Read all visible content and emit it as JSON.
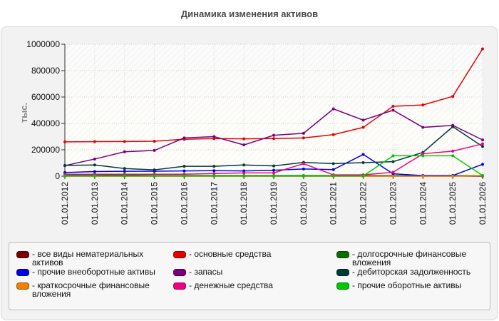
{
  "chart_data": {
    "type": "line",
    "title": "Динамика изменения активов",
    "ylabel": "тыс.",
    "xlabel": "",
    "ylim": [
      0,
      1000000
    ],
    "yticks": [
      0,
      200000,
      400000,
      600000,
      800000,
      1000000
    ],
    "ytick_labels": [
      "0",
      "200000",
      "400000",
      "600000",
      "800000",
      "1000000"
    ],
    "x": [
      "01.01.2012",
      "01.01.2013",
      "01.01.2014",
      "01.01.2015",
      "01.01.2016",
      "01.01.2017",
      "01.01.2018",
      "01.01.2019",
      "01.01.2020",
      "01.01.2021",
      "01.01.2022",
      "01.01.2023",
      "01.01.2024",
      "01.01.2025",
      "01.01.2026"
    ],
    "grid": true,
    "legend_position": "bottom",
    "series": [
      {
        "name": "все виды нематериальных активов",
        "color": "#7a0000",
        "values": [
          1000,
          1000,
          1000,
          1000,
          1000,
          1000,
          1000,
          1000,
          1000,
          1000,
          1000,
          1000,
          1000,
          1000,
          1000
        ]
      },
      {
        "name": "основные средства",
        "color": "#e80000",
        "values": [
          260000,
          262000,
          263000,
          265000,
          280000,
          285000,
          283000,
          285000,
          290000,
          315000,
          370000,
          530000,
          540000,
          605000,
          965000
        ]
      },
      {
        "name": "долгосрочные финансовые вложения",
        "color": "#0a6e00",
        "values": [
          10000,
          10000,
          8000,
          5000,
          5000,
          5000,
          5000,
          5000,
          5000,
          5000,
          5000,
          5000,
          5000,
          5000,
          5000
        ]
      },
      {
        "name": "прочие внеоборотные активы",
        "color": "#0000e6",
        "values": [
          28000,
          35000,
          37000,
          38000,
          40000,
          42000,
          40000,
          45000,
          55000,
          50000,
          165000,
          18000,
          5000,
          5000,
          90000
        ]
      },
      {
        "name": "запасы",
        "color": "#7a007a",
        "values": [
          80000,
          130000,
          185000,
          195000,
          290000,
          300000,
          237000,
          310000,
          325000,
          510000,
          425000,
          500000,
          370000,
          385000,
          275000
        ]
      },
      {
        "name": "дебиторская задолженность",
        "color": "#003b3b",
        "values": [
          82000,
          85000,
          58000,
          48000,
          75000,
          75000,
          85000,
          78000,
          105000,
          95000,
          103000,
          110000,
          180000,
          375000,
          225000
        ]
      },
      {
        "name": "краткосрочные финансовые вложения",
        "color": "#f08000",
        "values": [
          0,
          0,
          0,
          0,
          0,
          0,
          0,
          0,
          0,
          0,
          0,
          0,
          0,
          0,
          5000
        ]
      },
      {
        "name": "денежные средства",
        "color": "#f00080",
        "values": [
          15000,
          15000,
          15000,
          15000,
          15000,
          20000,
          25000,
          25000,
          95000,
          10000,
          10000,
          30000,
          170000,
          190000,
          245000
        ]
      },
      {
        "name": "прочие оборотные активы",
        "color": "#00c800",
        "values": [
          2000,
          2000,
          2000,
          2000,
          2000,
          2000,
          2000,
          2000,
          2000,
          2000,
          2000,
          155000,
          155000,
          155000,
          5000
        ]
      }
    ]
  },
  "legend_order": [
    0,
    3,
    6,
    1,
    4,
    7,
    2,
    5,
    8
  ]
}
